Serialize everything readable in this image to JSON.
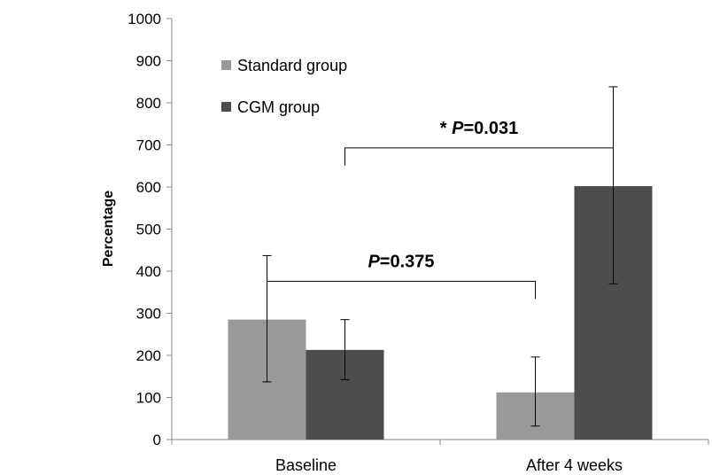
{
  "chart_data": {
    "type": "bar",
    "ylabel": "Percentage",
    "xlabel": "",
    "ylim": [
      0,
      1000
    ],
    "yticks": [
      0,
      100,
      200,
      300,
      400,
      500,
      600,
      700,
      800,
      900,
      1000
    ],
    "categories": [
      "Baseline",
      "After 4 weeks"
    ],
    "series": [
      {
        "name": "Standard group",
        "color": "#999999",
        "values": [
          285,
          112
        ],
        "error_low": [
          137,
          32
        ],
        "error_high": [
          437,
          196
        ]
      },
      {
        "name": "CGM group",
        "color": "#4d4d4d",
        "values": [
          213,
          602
        ],
        "error_low": [
          142,
          370
        ],
        "error_high": [
          285,
          838
        ]
      }
    ],
    "legend_position": "top-left",
    "grid": false,
    "annotations": [
      {
        "star": "* ",
        "p": "P",
        "value": "=0.031",
        "from_series": 1,
        "from_category": 0,
        "to_series": 1,
        "to_category": 1,
        "level": 693
      },
      {
        "star": "",
        "p": "P",
        "value": "=0.375",
        "from_series": 0,
        "from_category": 0,
        "to_series": 0,
        "to_category": 1,
        "level": 376
      }
    ]
  }
}
